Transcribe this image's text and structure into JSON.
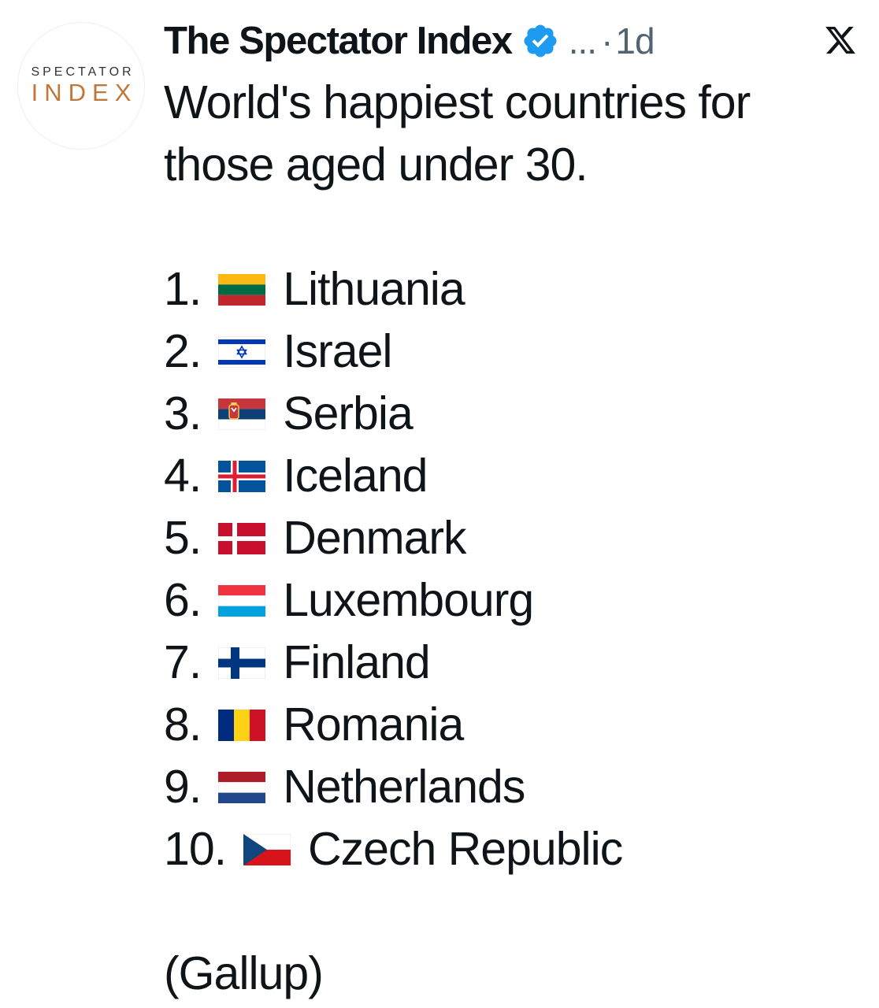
{
  "tweet": {
    "avatar": {
      "line1": "SPECTATOR",
      "line2": "INDEX",
      "accent_color": "#c0783a"
    },
    "author": "The Spectator Index",
    "verified_icon": "verified-badge-icon",
    "verified_color": "#1d9bf0",
    "more": "...",
    "separator": "·",
    "time": "1d",
    "platform_icon": "x-logo-icon",
    "intro": "World's happiest countries for those aged under 30.",
    "rankings": [
      {
        "rank": "1.",
        "flag": "lithuania-flag-icon",
        "country": "Lithuania"
      },
      {
        "rank": "2.",
        "flag": "israel-flag-icon",
        "country": "Israel"
      },
      {
        "rank": "3.",
        "flag": "serbia-flag-icon",
        "country": "Serbia"
      },
      {
        "rank": "4.",
        "flag": "iceland-flag-icon",
        "country": "Iceland"
      },
      {
        "rank": "5.",
        "flag": "denmark-flag-icon",
        "country": "Denmark"
      },
      {
        "rank": "6.",
        "flag": "luxembourg-flag-icon",
        "country": "Luxembourg"
      },
      {
        "rank": "7.",
        "flag": "finland-flag-icon",
        "country": "Finland"
      },
      {
        "rank": "8.",
        "flag": "romania-flag-icon",
        "country": "Romania"
      },
      {
        "rank": "9.",
        "flag": "netherlands-flag-icon",
        "country": "Netherlands"
      },
      {
        "rank": "10.",
        "flag": "czech-republic-flag-icon",
        "country": "Czech Republic"
      }
    ],
    "source": "(Gallup)"
  }
}
